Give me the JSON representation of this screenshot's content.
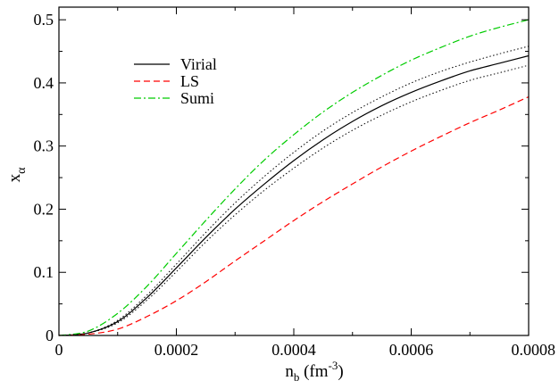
{
  "chart_data": {
    "type": "line",
    "title": "",
    "xlabel": {
      "base": "n",
      "sub": "b",
      "unit_open": " (fm",
      "unit_sup": "-3",
      "unit_close": ")"
    },
    "ylabel": {
      "base": "x",
      "sub": "α"
    },
    "xlim": [
      0,
      0.0008
    ],
    "ylim": [
      0,
      0.52
    ],
    "x_ticks": [
      0,
      0.0002,
      0.0004,
      0.0006,
      0.0008
    ],
    "x_tick_labels": [
      "0",
      "0.0002",
      "0.0004",
      "0.0006",
      "0.0008"
    ],
    "y_ticks": [
      0,
      0.1,
      0.2,
      0.3,
      0.4,
      0.5
    ],
    "y_tick_labels": [
      "0",
      "0.1",
      "0.2",
      "0.3",
      "0.4",
      "0.5"
    ],
    "grid": false,
    "legend_position": "top-left",
    "series": [
      {
        "name": "Virial",
        "color": "#000000",
        "dash": "solid",
        "in_legend": true,
        "x": [
          0,
          5e-05,
          0.0001,
          0.00015,
          0.0002,
          0.00025,
          0.0003,
          0.00035,
          0.0004,
          0.00045,
          0.0005,
          0.00055,
          0.0006,
          0.00065,
          0.0007,
          0.00075,
          0.0008
        ],
        "y": [
          0,
          0.004,
          0.022,
          0.06,
          0.107,
          0.155,
          0.2,
          0.24,
          0.277,
          0.31,
          0.339,
          0.364,
          0.385,
          0.403,
          0.419,
          0.431,
          0.443
        ]
      },
      {
        "name": "LS",
        "color": "#ff0000",
        "dash": "dashed",
        "in_legend": true,
        "x": [
          0,
          5e-05,
          0.0001,
          0.00015,
          0.0002,
          0.00025,
          0.0003,
          0.00035,
          0.0004,
          0.00045,
          0.0005,
          0.00055,
          0.0006,
          0.00065,
          0.0007,
          0.00075,
          0.0008
        ],
        "y": [
          0,
          0.002,
          0.01,
          0.03,
          0.055,
          0.085,
          0.118,
          0.15,
          0.182,
          0.212,
          0.24,
          0.267,
          0.292,
          0.315,
          0.337,
          0.357,
          0.378
        ]
      },
      {
        "name": "Sumi",
        "color": "#00cc00",
        "dash": "dashdot",
        "in_legend": true,
        "x": [
          0,
          5e-05,
          0.0001,
          0.00015,
          0.0002,
          0.00025,
          0.0003,
          0.00035,
          0.0004,
          0.00045,
          0.0005,
          0.00055,
          0.0006,
          0.00065,
          0.0007,
          0.00075,
          0.0008
        ],
        "y": [
          0,
          0.007,
          0.035,
          0.078,
          0.13,
          0.182,
          0.232,
          0.278,
          0.318,
          0.354,
          0.385,
          0.412,
          0.436,
          0.456,
          0.474,
          0.488,
          0.5
        ]
      },
      {
        "name": "",
        "color": "#000000",
        "dash": "dotted",
        "in_legend": false,
        "x": [
          0,
          5e-05,
          0.0001,
          0.00015,
          0.0002,
          0.00025,
          0.0003,
          0.00035,
          0.0004,
          0.00045,
          0.0005,
          0.00055,
          0.0006,
          0.00065,
          0.0007,
          0.00075,
          0.0008
        ],
        "y": [
          0,
          0.004,
          0.024,
          0.064,
          0.113,
          0.163,
          0.21,
          0.252,
          0.29,
          0.324,
          0.353,
          0.378,
          0.4,
          0.418,
          0.433,
          0.446,
          0.458
        ]
      },
      {
        "name": "",
        "color": "#000000",
        "dash": "dotted",
        "in_legend": false,
        "x": [
          0,
          5e-05,
          0.0001,
          0.00015,
          0.0002,
          0.00025,
          0.0003,
          0.00035,
          0.0004,
          0.00045,
          0.0005,
          0.00055,
          0.0006,
          0.00065,
          0.0007,
          0.00075,
          0.0008
        ],
        "y": [
          0,
          0.004,
          0.02,
          0.056,
          0.101,
          0.148,
          0.191,
          0.23,
          0.265,
          0.297,
          0.325,
          0.349,
          0.37,
          0.388,
          0.404,
          0.416,
          0.428
        ]
      }
    ]
  }
}
